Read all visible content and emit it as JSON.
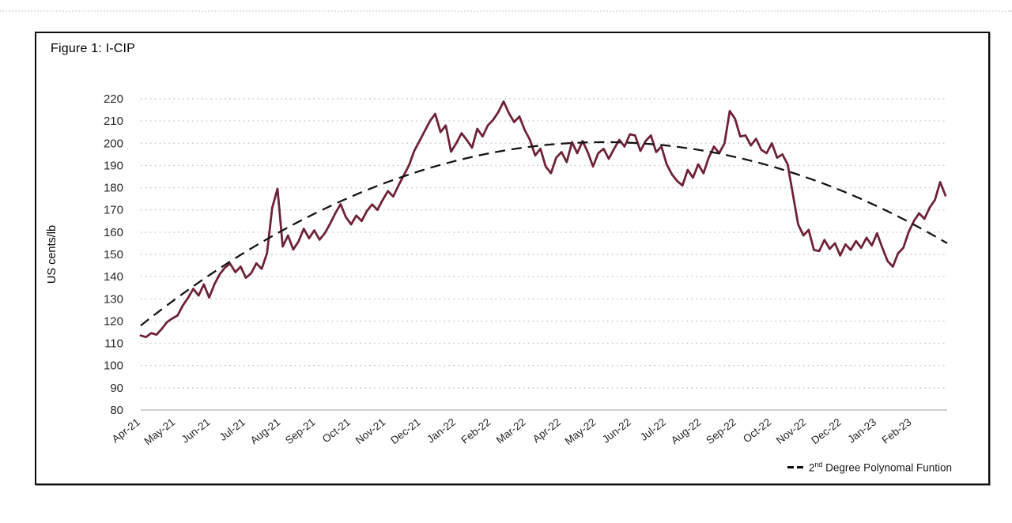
{
  "figure": {
    "title": "Figure 1: I-CIP",
    "y_axis_title": "US cents/lb",
    "legend": {
      "prefix": "2",
      "superscript": "nd",
      "rest": " Degree Polynomal Funtion"
    }
  },
  "colors": {
    "series_line": "#6e2236",
    "trend_line": "#141414",
    "gridline": "#c9c9c9",
    "axis_line": "#bfbfbf",
    "tick_text": "#262626",
    "border": "#0d0d0d",
    "background": "#ffffff"
  },
  "chart_data": {
    "type": "line",
    "title": "Figure 1: I-CIP",
    "xlabel": "",
    "ylabel": "US cents/lb",
    "ylim": [
      80,
      220
    ],
    "y_ticks": [
      220,
      210,
      200,
      190,
      180,
      170,
      160,
      150,
      140,
      130,
      120,
      110,
      100,
      90,
      80
    ],
    "x_tick_labels": [
      "Apr-21",
      "May-21",
      "Jun-21",
      "Jul-21",
      "Aug-21",
      "Sep-21",
      "Oct-21",
      "Nov-21",
      "Dec-21",
      "Jan-22",
      "Feb-22",
      "Mar-22",
      "Apr-22",
      "May-22",
      "Jun-22",
      "Jul-22",
      "Aug-22",
      "Sep-22",
      "Oct-22",
      "Nov-22",
      "Dec-22",
      "Jan-23",
      "Feb-23"
    ],
    "x_range": [
      0,
      23
    ],
    "x_unit": "months since Apr-2021",
    "grid": "horizontal dotted, solid baseline at 80",
    "legend_position": "bottom-right",
    "legend_entries": [
      "2nd Degree Polynomal Funtion"
    ],
    "series": [
      {
        "name": "I-CIP",
        "style": "solid",
        "points": [
          [
            0.0,
            113.5
          ],
          [
            0.15,
            112.8
          ],
          [
            0.3,
            114.6
          ],
          [
            0.45,
            113.9
          ],
          [
            0.6,
            116.5
          ],
          [
            0.75,
            119.6
          ],
          [
            0.9,
            121.2
          ],
          [
            1.05,
            122.5
          ],
          [
            1.2,
            127.0
          ],
          [
            1.35,
            130.5
          ],
          [
            1.5,
            134.5
          ],
          [
            1.65,
            131.5
          ],
          [
            1.8,
            136.5
          ],
          [
            1.95,
            130.6
          ],
          [
            2.1,
            136.5
          ],
          [
            2.25,
            141.0
          ],
          [
            2.4,
            144.0
          ],
          [
            2.55,
            145.8
          ],
          [
            2.7,
            142.0
          ],
          [
            2.85,
            144.5
          ],
          [
            3.0,
            139.5
          ],
          [
            3.15,
            141.5
          ],
          [
            3.3,
            146.0
          ],
          [
            3.45,
            143.5
          ],
          [
            3.6,
            150.5
          ],
          [
            3.75,
            171.0
          ],
          [
            3.9,
            179.5
          ],
          [
            4.05,
            153.5
          ],
          [
            4.2,
            158.5
          ],
          [
            4.35,
            152.2
          ],
          [
            4.5,
            155.8
          ],
          [
            4.65,
            161.5
          ],
          [
            4.8,
            157.2
          ],
          [
            4.95,
            160.8
          ],
          [
            5.1,
            156.6
          ],
          [
            5.25,
            159.5
          ],
          [
            5.4,
            163.8
          ],
          [
            5.55,
            168.5
          ],
          [
            5.7,
            172.6
          ],
          [
            5.85,
            166.8
          ],
          [
            6.0,
            163.5
          ],
          [
            6.15,
            167.5
          ],
          [
            6.3,
            165.0
          ],
          [
            6.45,
            169.5
          ],
          [
            6.6,
            172.5
          ],
          [
            6.75,
            170.0
          ],
          [
            6.9,
            174.5
          ],
          [
            7.05,
            178.5
          ],
          [
            7.2,
            176.0
          ],
          [
            7.35,
            181.0
          ],
          [
            7.5,
            185.5
          ],
          [
            7.65,
            190.0
          ],
          [
            7.8,
            196.5
          ],
          [
            7.95,
            201.0
          ],
          [
            8.1,
            205.5
          ],
          [
            8.25,
            210.0
          ],
          [
            8.4,
            213.2
          ],
          [
            8.55,
            205.0
          ],
          [
            8.7,
            208.0
          ],
          [
            8.85,
            196.2
          ],
          [
            9.0,
            200.0
          ],
          [
            9.15,
            204.5
          ],
          [
            9.3,
            201.5
          ],
          [
            9.45,
            198.0
          ],
          [
            9.6,
            206.5
          ],
          [
            9.75,
            203.0
          ],
          [
            9.9,
            208.0
          ],
          [
            10.05,
            210.5
          ],
          [
            10.2,
            214.0
          ],
          [
            10.35,
            218.8
          ],
          [
            10.5,
            213.5
          ],
          [
            10.65,
            209.5
          ],
          [
            10.8,
            212.0
          ],
          [
            10.95,
            206.0
          ],
          [
            11.1,
            201.5
          ],
          [
            11.25,
            194.5
          ],
          [
            11.4,
            197.5
          ],
          [
            11.55,
            189.5
          ],
          [
            11.7,
            186.5
          ],
          [
            11.85,
            193.5
          ],
          [
            12.0,
            196.0
          ],
          [
            12.15,
            191.5
          ],
          [
            12.3,
            200.5
          ],
          [
            12.45,
            195.5
          ],
          [
            12.6,
            201.0
          ],
          [
            12.75,
            196.0
          ],
          [
            12.9,
            189.5
          ],
          [
            13.05,
            195.5
          ],
          [
            13.2,
            197.5
          ],
          [
            13.35,
            193.0
          ],
          [
            13.5,
            197.5
          ],
          [
            13.65,
            201.5
          ],
          [
            13.8,
            198.5
          ],
          [
            13.95,
            204.0
          ],
          [
            14.1,
            203.5
          ],
          [
            14.25,
            196.5
          ],
          [
            14.4,
            201.0
          ],
          [
            14.55,
            203.5
          ],
          [
            14.7,
            196.0
          ],
          [
            14.85,
            198.5
          ],
          [
            15.0,
            190.5
          ],
          [
            15.15,
            186.0
          ],
          [
            15.3,
            183.0
          ],
          [
            15.45,
            181.0
          ],
          [
            15.6,
            188.0
          ],
          [
            15.75,
            184.5
          ],
          [
            15.9,
            190.5
          ],
          [
            16.05,
            186.5
          ],
          [
            16.2,
            193.5
          ],
          [
            16.35,
            198.5
          ],
          [
            16.5,
            195.5
          ],
          [
            16.65,
            200.0
          ],
          [
            16.8,
            214.5
          ],
          [
            16.95,
            211.0
          ],
          [
            17.1,
            203.0
          ],
          [
            17.25,
            203.5
          ],
          [
            17.4,
            199.0
          ],
          [
            17.55,
            202.0
          ],
          [
            17.7,
            197.0
          ],
          [
            17.85,
            195.5
          ],
          [
            18.0,
            200.0
          ],
          [
            18.15,
            193.5
          ],
          [
            18.3,
            195.0
          ],
          [
            18.45,
            190.5
          ],
          [
            18.6,
            177.0
          ],
          [
            18.75,
            163.5
          ],
          [
            18.9,
            158.5
          ],
          [
            19.05,
            161.0
          ],
          [
            19.2,
            152.0
          ],
          [
            19.35,
            151.5
          ],
          [
            19.5,
            156.5
          ],
          [
            19.65,
            152.5
          ],
          [
            19.8,
            155.0
          ],
          [
            19.95,
            149.5
          ],
          [
            20.1,
            154.5
          ],
          [
            20.25,
            152.0
          ],
          [
            20.4,
            156.0
          ],
          [
            20.55,
            153.0
          ],
          [
            20.7,
            157.5
          ],
          [
            20.85,
            154.0
          ],
          [
            21.0,
            159.5
          ],
          [
            21.15,
            153.0
          ],
          [
            21.3,
            147.0
          ],
          [
            21.45,
            144.5
          ],
          [
            21.6,
            150.5
          ],
          [
            21.75,
            153.0
          ],
          [
            21.9,
            160.0
          ],
          [
            22.05,
            165.0
          ],
          [
            22.2,
            168.5
          ],
          [
            22.35,
            166.0
          ],
          [
            22.5,
            171.0
          ],
          [
            22.65,
            174.5
          ],
          [
            22.8,
            182.5
          ],
          [
            22.95,
            176.5
          ]
        ]
      },
      {
        "name": "2nd Degree Polynomal Funtion",
        "style": "dashed",
        "trend": {
          "form": "quadratic",
          "formula": "y = 118 + 287.5*t - 250.5*t^2, t = x/23",
          "coefficients": [
            118,
            287.5,
            -250.5
          ],
          "peak_value": 200.5,
          "start_value": 118,
          "end_value": 155
        }
      }
    ]
  }
}
